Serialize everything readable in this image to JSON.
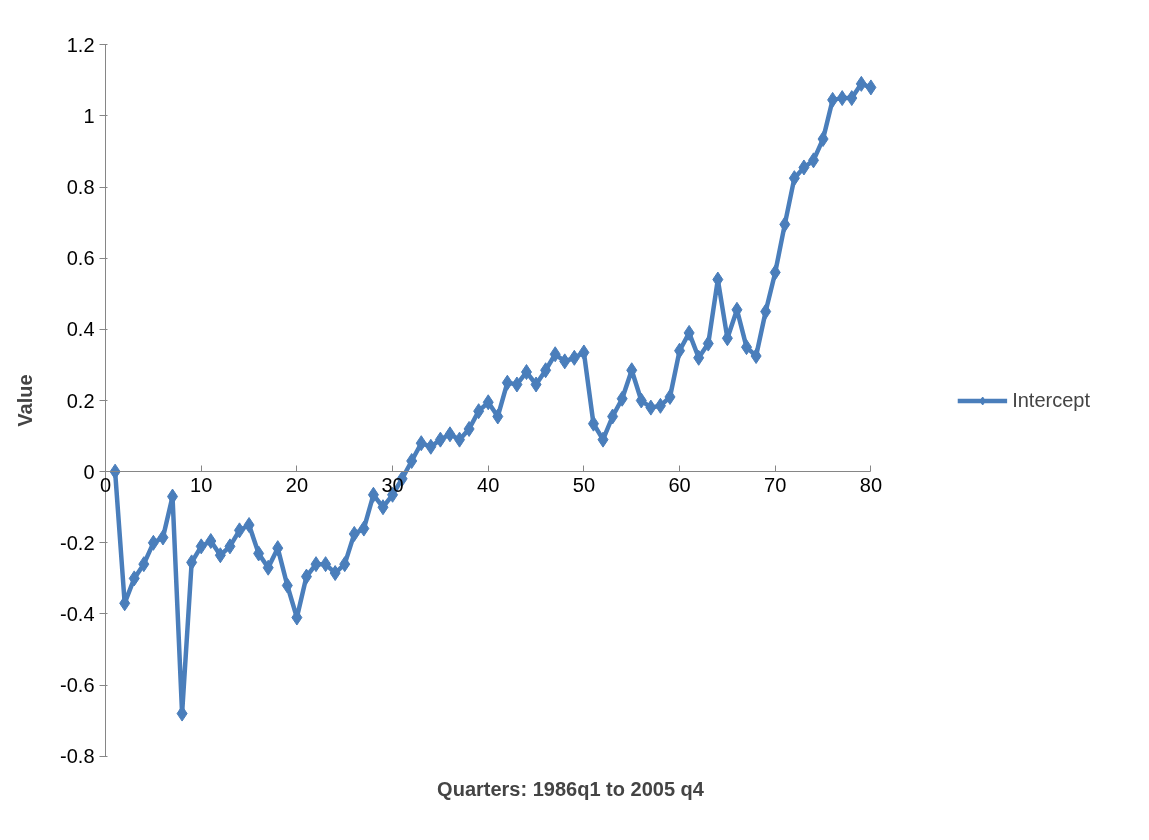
{
  "chart_data": {
    "type": "line",
    "xlabel": "Quarters: 1986q1 to 2005 q4",
    "ylabel": "Value",
    "x": [
      1,
      2,
      3,
      4,
      5,
      6,
      7,
      8,
      9,
      10,
      11,
      12,
      13,
      14,
      15,
      16,
      17,
      18,
      19,
      20,
      21,
      22,
      23,
      24,
      25,
      26,
      27,
      28,
      29,
      30,
      31,
      32,
      33,
      34,
      35,
      36,
      37,
      38,
      39,
      40,
      41,
      42,
      43,
      44,
      45,
      46,
      47,
      48,
      49,
      50,
      51,
      52,
      53,
      54,
      55,
      56,
      57,
      58,
      59,
      60,
      61,
      62,
      63,
      64,
      65,
      66,
      67,
      68,
      69,
      70,
      71,
      72,
      73,
      74,
      75,
      76,
      77,
      78,
      79,
      80
    ],
    "series": [
      {
        "name": "Intercept",
        "color": "#4a7ebb",
        "values": [
          0,
          -0.37,
          -0.3,
          -0.26,
          -0.2,
          -0.185,
          -0.07,
          -0.68,
          -0.255,
          -0.21,
          -0.195,
          -0.235,
          -0.21,
          -0.165,
          -0.15,
          -0.23,
          -0.27,
          -0.215,
          -0.32,
          -0.41,
          -0.295,
          -0.26,
          -0.26,
          -0.285,
          -0.26,
          -0.175,
          -0.16,
          -0.065,
          -0.1,
          -0.065,
          -0.02,
          0.03,
          0.08,
          0.07,
          0.09,
          0.105,
          0.09,
          0.12,
          0.17,
          0.195,
          0.155,
          0.25,
          0.245,
          0.28,
          0.245,
          0.285,
          0.33,
          0.31,
          0.32,
          0.335,
          0.135,
          0.09,
          0.155,
          0.205,
          0.285,
          0.2,
          0.18,
          0.185,
          0.21,
          0.34,
          0.39,
          0.32,
          0.36,
          0.54,
          0.375,
          0.455,
          0.35,
          0.325,
          0.45,
          0.56,
          0.695,
          0.825,
          0.855,
          0.875,
          0.935,
          1.045,
          1.05,
          1.05,
          1.09,
          1.08
        ]
      }
    ],
    "xlim": [
      0,
      80
    ],
    "xticks": [
      0,
      10,
      20,
      30,
      40,
      50,
      60,
      70,
      80
    ],
    "ylim": [
      -0.8,
      1.2
    ],
    "yticks": [
      -0.8,
      -0.6,
      -0.4,
      -0.2,
      0,
      0.2,
      0.4,
      0.6,
      0.8,
      1,
      1.2
    ],
    "grid": false,
    "legend": "right",
    "marker": "diamond",
    "line_style": "solid"
  }
}
